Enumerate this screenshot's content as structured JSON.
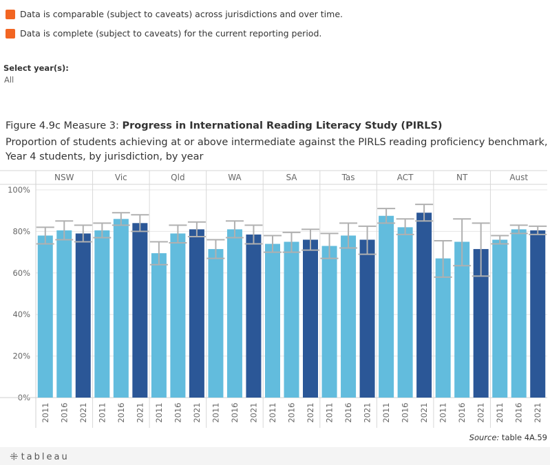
{
  "legend": {
    "items": [
      {
        "label": "Data is comparable (subject to caveats) across jurisdictions and over time.",
        "color": "#f26522"
      },
      {
        "label": "Data is complete (subject to caveats) for the current reporting period.",
        "color": "#f26522"
      }
    ]
  },
  "filter": {
    "title": "Select year(s):",
    "value": "All"
  },
  "figure": {
    "title_prefix": "Figure 4.9c Measure 3: ",
    "title_bold": "Progress in International Reading Literacy Study (PIRLS)",
    "subtitle": "Proportion of students achieving at or above intermediate against the PIRLS reading proficiency benchmark, Year 4 students, by jurisdiction, by year"
  },
  "source": {
    "label": "Source:",
    "text": " table 4A.59"
  },
  "footer": {
    "logo_text": "tableau",
    "logo_icon": "tableau-plus-icon"
  },
  "colors": {
    "light": "#62bcdd",
    "dark": "#2b5797",
    "error": "#b0b0b0",
    "grid": "#e6e6e6"
  },
  "chart_data": {
    "type": "bar",
    "ylim": [
      0,
      100
    ],
    "yticks": [
      "0%",
      "20%",
      "40%",
      "60%",
      "80%",
      "100%"
    ],
    "grid": true,
    "groups": [
      {
        "name": "NSW",
        "bars": [
          {
            "year": "2011",
            "value": 78,
            "lo": 74,
            "hi": 82
          },
          {
            "year": "2016",
            "value": 80.5,
            "lo": 76,
            "hi": 85
          },
          {
            "year": "2021",
            "value": 79,
            "lo": 75,
            "hi": 83
          }
        ]
      },
      {
        "name": "Vic",
        "bars": [
          {
            "year": "2011",
            "value": 80.5,
            "lo": 77,
            "hi": 84
          },
          {
            "year": "2016",
            "value": 86,
            "lo": 83,
            "hi": 89
          },
          {
            "year": "2021",
            "value": 84,
            "lo": 80,
            "hi": 88
          }
        ]
      },
      {
        "name": "Qld",
        "bars": [
          {
            "year": "2011",
            "value": 69.5,
            "lo": 64,
            "hi": 75
          },
          {
            "year": "2016",
            "value": 79,
            "lo": 74.5,
            "hi": 83
          },
          {
            "year": "2021",
            "value": 81,
            "lo": 77.5,
            "hi": 84.5
          }
        ]
      },
      {
        "name": "WA",
        "bars": [
          {
            "year": "2011",
            "value": 71.5,
            "lo": 67,
            "hi": 76
          },
          {
            "year": "2016",
            "value": 81,
            "lo": 77,
            "hi": 85
          },
          {
            "year": "2021",
            "value": 78.5,
            "lo": 74,
            "hi": 83
          }
        ]
      },
      {
        "name": "SA",
        "bars": [
          {
            "year": "2011",
            "value": 74,
            "lo": 70,
            "hi": 78
          },
          {
            "year": "2016",
            "value": 75,
            "lo": 70,
            "hi": 79.5
          },
          {
            "year": "2021",
            "value": 76,
            "lo": 71,
            "hi": 81
          }
        ]
      },
      {
        "name": "Tas",
        "bars": [
          {
            "year": "2011",
            "value": 73,
            "lo": 67,
            "hi": 79
          },
          {
            "year": "2016",
            "value": 78,
            "lo": 72,
            "hi": 84
          },
          {
            "year": "2021",
            "value": 76,
            "lo": 69,
            "hi": 82.5
          }
        ]
      },
      {
        "name": "ACT",
        "bars": [
          {
            "year": "2011",
            "value": 87.5,
            "lo": 84,
            "hi": 91
          },
          {
            "year": "2016",
            "value": 82,
            "lo": 78.5,
            "hi": 86
          },
          {
            "year": "2021",
            "value": 89,
            "lo": 85,
            "hi": 93
          }
        ]
      },
      {
        "name": "NT",
        "bars": [
          {
            "year": "2011",
            "value": 67,
            "lo": 58,
            "hi": 75.5
          },
          {
            "year": "2016",
            "value": 75,
            "lo": 63.5,
            "hi": 86
          },
          {
            "year": "2021",
            "value": 71.5,
            "lo": 58.5,
            "hi": 84
          }
        ]
      },
      {
        "name": "Aust",
        "bars": [
          {
            "year": "2011",
            "value": 76,
            "lo": 74,
            "hi": 78
          },
          {
            "year": "2016",
            "value": 81,
            "lo": 79,
            "hi": 83
          },
          {
            "year": "2021",
            "value": 80.5,
            "lo": 78.5,
            "hi": 82.5
          }
        ]
      }
    ]
  }
}
